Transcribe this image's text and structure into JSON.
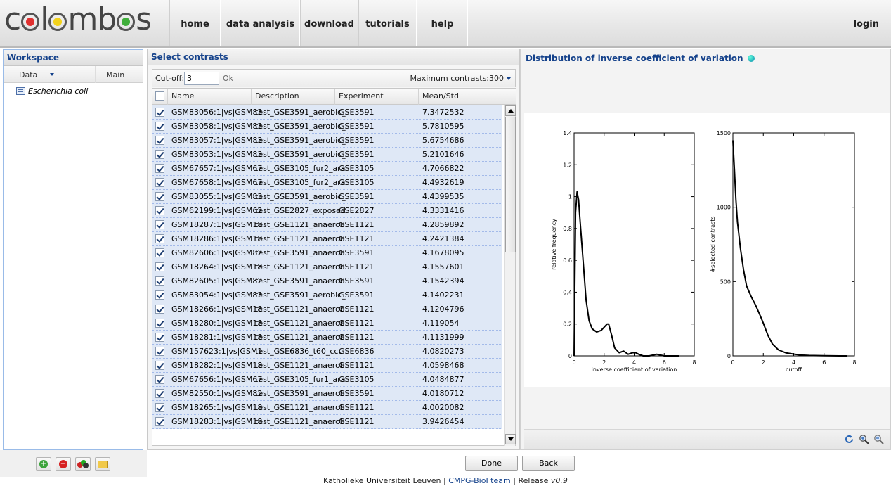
{
  "header": {
    "logo_text": "colombos",
    "nav": [
      "home",
      "data analysis",
      "download",
      "tutorials",
      "help"
    ],
    "login": "login"
  },
  "workspace": {
    "title": "Workspace",
    "columns": [
      "Data",
      "Main"
    ],
    "tree_item": "Escherichia coli",
    "buttons": [
      "add-icon",
      "remove-icon",
      "group-icon",
      "folder-icon"
    ]
  },
  "contrasts": {
    "title": "Select contrasts",
    "cutoff_label": "Cut-off:",
    "cutoff_value": "3",
    "ok_label": "Ok",
    "max_contrasts": "Maximum contrasts:300",
    "columns": [
      "Name",
      "Description",
      "Experiment",
      "Mean/Std"
    ],
    "rows": [
      {
        "name": "GSM83056:1|vs|GSM83",
        "desc": "test_GSE3591_aerobic_",
        "exp": "GSE3591",
        "val": "7.3472532"
      },
      {
        "name": "GSM83058:1|vs|GSM83",
        "desc": "test_GSE3591_aerobic_",
        "exp": "GSE3591",
        "val": "5.7810595"
      },
      {
        "name": "GSM83057:1|vs|GSM83",
        "desc": "test_GSE3591_aerobic_",
        "exp": "GSE3591",
        "val": "5.6754686"
      },
      {
        "name": "GSM83053:1|vs|GSM83",
        "desc": "test_GSE3591_aerobic_",
        "exp": "GSE3591",
        "val": "5.2101646"
      },
      {
        "name": "GSM67657:1|vs|GSM67",
        "desc": "test_GSE3105_fur2_ara",
        "exp": "GSE3105",
        "val": "4.7066822"
      },
      {
        "name": "GSM67658:1|vs|GSM67",
        "desc": "test_GSE3105_fur2_ara",
        "exp": "GSE3105",
        "val": "4.4932619"
      },
      {
        "name": "GSM83055:1|vs|GSM83",
        "desc": "test_GSE3591_aerobic_",
        "exp": "GSE3591",
        "val": "4.4399535"
      },
      {
        "name": "GSM62199:1|vs|GSM62",
        "desc": "test_GSE2827_exposed",
        "exp": "GSE2827",
        "val": "4.3331416"
      },
      {
        "name": "GSM18287:1|vs|GSM18",
        "desc": "test_GSE1121_anaerob",
        "exp": "GSE1121",
        "val": "4.2859892"
      },
      {
        "name": "GSM18286:1|vs|GSM18",
        "desc": "test_GSE1121_anaerob",
        "exp": "GSE1121",
        "val": "4.2421384"
      },
      {
        "name": "GSM82606:1|vs|GSM82",
        "desc": "test_GSE3591_anaerob",
        "exp": "GSE3591",
        "val": "4.1678095"
      },
      {
        "name": "GSM18264:1|vs|GSM18",
        "desc": "test_GSE1121_anaerob",
        "exp": "GSE1121",
        "val": "4.1557601"
      },
      {
        "name": "GSM82605:1|vs|GSM82",
        "desc": "test_GSE3591_anaerob",
        "exp": "GSE3591",
        "val": "4.1542394"
      },
      {
        "name": "GSM83054:1|vs|GSM83",
        "desc": "test_GSE3591_aerobic_",
        "exp": "GSE3591",
        "val": "4.1402231"
      },
      {
        "name": "GSM18266:1|vs|GSM18",
        "desc": "test_GSE1121_anaerob",
        "exp": "GSE1121",
        "val": "4.1204796"
      },
      {
        "name": "GSM18280:1|vs|GSM18",
        "desc": "test_GSE1121_anaerob",
        "exp": "GSE1121",
        "val": "4.119054"
      },
      {
        "name": "GSM18281:1|vs|GSM18",
        "desc": "test_GSE1121_anaerob",
        "exp": "GSE1121",
        "val": "4.1131999"
      },
      {
        "name": "GSM157623:1|vs|GSM1",
        "desc": "test_GSE6836_t60_ccc",
        "exp": "GSE6836",
        "val": "4.0820273"
      },
      {
        "name": "GSM18282:1|vs|GSM18",
        "desc": "test_GSE1121_anaerob",
        "exp": "GSE1121",
        "val": "4.0598468"
      },
      {
        "name": "GSM67656:1|vs|GSM67",
        "desc": "test_GSE3105_fur1_ara",
        "exp": "GSE3105",
        "val": "4.0484877"
      },
      {
        "name": "GSM82550:1|vs|GSM82",
        "desc": "test_GSE3591_anaerob",
        "exp": "GSE3591",
        "val": "4.0180712"
      },
      {
        "name": "GSM18265:1|vs|GSM18",
        "desc": "test_GSE1121_anaerob",
        "exp": "GSE1121",
        "val": "4.0020082"
      },
      {
        "name": "GSM18283:1|vs|GSM18",
        "desc": "test_GSE1121_anaerob",
        "exp": "GSE1121",
        "val": "3.9426454"
      }
    ]
  },
  "distribution": {
    "title": "Distribution of inverse coefficient of variation",
    "tools": [
      "refresh-icon",
      "zoom-in-icon",
      "zoom-out-icon"
    ]
  },
  "chart_data": [
    {
      "type": "line",
      "title": "",
      "xlabel": "inverse coefficient of variation",
      "ylabel": "relative frequency",
      "xlim": [
        0,
        8
      ],
      "ylim": [
        0,
        1.4
      ],
      "xticks": [
        "0",
        "2",
        "4",
        "6",
        "8"
      ],
      "yticks": [
        "0",
        "0.2",
        "0.4",
        "0.6",
        "0.8",
        "1",
        "1.2",
        "1.4"
      ],
      "x": [
        0,
        0.1,
        0.2,
        0.3,
        0.4,
        0.6,
        0.8,
        1.0,
        1.2,
        1.5,
        1.8,
        2.0,
        2.2,
        2.3,
        2.5,
        2.7,
        3.0,
        3.3,
        3.6,
        3.9,
        4.1,
        4.3,
        4.6,
        5.0,
        5.5,
        6.0,
        6.5,
        7.0
      ],
      "y": [
        0.0,
        0.9,
        1.03,
        0.98,
        0.85,
        0.6,
        0.35,
        0.22,
        0.17,
        0.15,
        0.16,
        0.18,
        0.2,
        0.2,
        0.13,
        0.05,
        0.02,
        0.03,
        0.01,
        0.02,
        0.02,
        0.01,
        0.0,
        0.0,
        0.01,
        0.0,
        0.0,
        0.0
      ]
    },
    {
      "type": "line",
      "title": "",
      "xlabel": "cutoff",
      "ylabel": "#selected contrasts",
      "xlim": [
        0,
        8
      ],
      "ylim": [
        0,
        1500
      ],
      "xticks": [
        "0",
        "2",
        "4",
        "6",
        "8"
      ],
      "yticks": [
        "0",
        "500",
        "1000",
        "1500"
      ],
      "x": [
        0,
        0.1,
        0.2,
        0.3,
        0.5,
        0.7,
        0.9,
        1.2,
        1.5,
        1.8,
        2.0,
        2.3,
        2.6,
        3.0,
        3.5,
        4.0,
        4.5,
        5.0,
        6.0,
        7.0,
        7.5
      ],
      "y": [
        1450,
        1250,
        1050,
        900,
        720,
        580,
        470,
        400,
        340,
        270,
        220,
        140,
        80,
        40,
        20,
        12,
        5,
        3,
        1,
        0,
        0
      ]
    }
  ],
  "buttons": {
    "done": "Done",
    "back": "Back"
  },
  "footer": {
    "org": "Katholieke Universiteit Leuven",
    "sep": "|",
    "team": "CMPG-BioI team",
    "release_label": "Release",
    "version": "v0.9"
  }
}
